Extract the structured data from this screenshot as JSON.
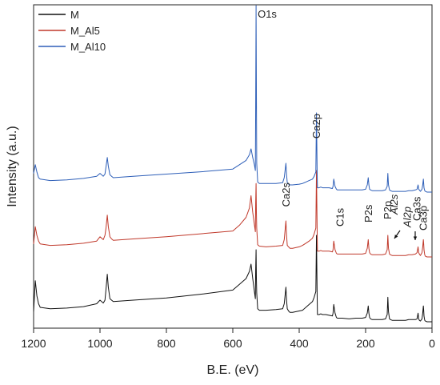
{
  "chart_data": {
    "type": "line",
    "xlabel": "B.E. (eV)",
    "ylabel": "Intensity (a.u.)",
    "xlim": [
      1200,
      0
    ],
    "x_reversed": true,
    "xticks": [
      1200,
      1000,
      800,
      600,
      400,
      200,
      0
    ],
    "y_ticks_shown": false,
    "grid": false,
    "legend_position": "top-left",
    "series": [
      {
        "name": "M",
        "color": "#111111",
        "offset": 0,
        "x": [
          1200,
          1195,
          1190,
          1185,
          1180,
          1150,
          1100,
          1050,
          1010,
          1000,
          990,
          985,
          982,
          978,
          975,
          970,
          965,
          960,
          900,
          800,
          700,
          600,
          580,
          560,
          550,
          545,
          540,
          535,
          532,
          531,
          530,
          529,
          528,
          525,
          520,
          500,
          470,
          450,
          445,
          440,
          438,
          436,
          432,
          428,
          420,
          400,
          390,
          380,
          370,
          360,
          355,
          350,
          348,
          347,
          346,
          345,
          343,
          340,
          335,
          330,
          320,
          310,
          300,
          298,
          296,
          292,
          288,
          285,
          280,
          270,
          250,
          230,
          210,
          200,
          195,
          192,
          190,
          188,
          185,
          180,
          170,
          160,
          150,
          140,
          135,
          133,
          131,
          128,
          125,
          120,
          110,
          100,
          90,
          80,
          70,
          60,
          50,
          45,
          42,
          40,
          38,
          35,
          30,
          28,
          26,
          25,
          24,
          22,
          20,
          15,
          10,
          5,
          0
        ],
        "y": [
          14,
          57,
          36,
          25,
          20,
          18,
          19,
          21,
          25,
          30,
          26,
          30,
          45,
          66,
          48,
          32,
          30,
          28,
          30,
          33,
          38,
          44,
          52,
          60,
          70,
          80,
          60,
          42,
          32,
          72,
          100,
          60,
          40,
          18,
          16,
          16,
          17,
          18,
          25,
          48,
          30,
          18,
          15,
          13,
          13,
          15,
          16,
          20,
          24,
          28,
          34,
          42,
          120,
          80,
          40,
          10,
          10,
          10,
          11,
          10,
          10,
          9,
          8,
          12,
          24,
          12,
          6,
          5,
          5,
          5,
          4,
          5,
          5,
          6,
          12,
          22,
          12,
          6,
          4,
          3,
          3,
          3,
          3,
          4,
          10,
          34,
          14,
          4,
          3,
          2,
          2,
          2,
          2,
          2,
          3,
          3,
          3,
          4,
          12,
          4,
          2,
          1,
          4,
          12,
          22,
          16,
          8,
          2,
          1,
          0,
          0,
          0,
          0
        ]
      },
      {
        "name": "M_Al5",
        "color": "#c0392b",
        "offset": 90,
        "x": [
          1200,
          1195,
          1190,
          1185,
          1180,
          1150,
          1100,
          1050,
          1010,
          1000,
          990,
          985,
          982,
          978,
          975,
          970,
          965,
          960,
          900,
          800,
          700,
          600,
          580,
          560,
          550,
          545,
          540,
          535,
          532,
          531,
          530,
          529,
          528,
          525,
          520,
          500,
          470,
          450,
          445,
          440,
          438,
          436,
          432,
          428,
          420,
          400,
          390,
          380,
          370,
          360,
          355,
          350,
          348,
          347,
          346,
          345,
          343,
          340,
          335,
          330,
          320,
          310,
          300,
          298,
          296,
          292,
          288,
          285,
          280,
          270,
          250,
          230,
          210,
          200,
          195,
          192,
          190,
          188,
          185,
          180,
          170,
          160,
          150,
          140,
          135,
          133,
          131,
          128,
          125,
          120,
          110,
          100,
          90,
          80,
          70,
          60,
          50,
          45,
          42,
          40,
          38,
          35,
          30,
          28,
          26,
          25,
          24,
          22,
          20,
          15,
          10,
          5,
          0
        ],
        "y": [
          18,
          42,
          30,
          22,
          18,
          16,
          17,
          19,
          22,
          28,
          24,
          30,
          40,
          58,
          42,
          28,
          25,
          23,
          25,
          28,
          32,
          36,
          44,
          55,
          68,
          85,
          62,
          45,
          35,
          75,
          102,
          62,
          40,
          17,
          15,
          14,
          15,
          16,
          24,
          50,
          30,
          16,
          14,
          12,
          12,
          14,
          16,
          19,
          22,
          26,
          32,
          40,
          120,
          80,
          40,
          8,
          8,
          8,
          9,
          8,
          8,
          8,
          7,
          10,
          22,
          10,
          5,
          4,
          4,
          4,
          4,
          4,
          4,
          5,
          12,
          24,
          12,
          6,
          4,
          3,
          3,
          3,
          3,
          4,
          10,
          30,
          12,
          4,
          3,
          2,
          2,
          2,
          2,
          2,
          3,
          3,
          4,
          6,
          14,
          6,
          4,
          2,
          6,
          14,
          24,
          18,
          10,
          3,
          1,
          0,
          0,
          0,
          0
        ]
      },
      {
        "name": "M_Al10",
        "color": "#2e5fb8",
        "offset": 180,
        "x": [
          1200,
          1195,
          1190,
          1185,
          1180,
          1150,
          1100,
          1050,
          1010,
          1000,
          990,
          985,
          982,
          978,
          975,
          970,
          965,
          960,
          900,
          800,
          700,
          600,
          580,
          560,
          550,
          545,
          540,
          535,
          532,
          531,
          530,
          529,
          528,
          525,
          520,
          500,
          470,
          450,
          445,
          440,
          438,
          436,
          432,
          428,
          420,
          400,
          390,
          380,
          370,
          360,
          355,
          350,
          348,
          347,
          346,
          345,
          343,
          340,
          335,
          330,
          320,
          310,
          300,
          298,
          296,
          292,
          288,
          285,
          280,
          270,
          250,
          230,
          210,
          200,
          195,
          192,
          190,
          188,
          185,
          180,
          170,
          160,
          150,
          140,
          135,
          133,
          131,
          128,
          125,
          120,
          110,
          100,
          90,
          80,
          70,
          60,
          50,
          45,
          42,
          40,
          38,
          35,
          30,
          28,
          26,
          25,
          24,
          22,
          20,
          15,
          10,
          5,
          0
        ],
        "y": [
          26,
          38,
          28,
          20,
          18,
          16,
          17,
          19,
          22,
          26,
          22,
          25,
          35,
          48,
          36,
          24,
          22,
          20,
          22,
          25,
          28,
          32,
          38,
          44,
          52,
          60,
          48,
          38,
          30,
          120,
          330,
          140,
          40,
          14,
          12,
          12,
          12,
          13,
          20,
          40,
          24,
          13,
          11,
          10,
          10,
          11,
          12,
          14,
          16,
          18,
          22,
          28,
          110,
          70,
          30,
          6,
          6,
          6,
          7,
          6,
          6,
          6,
          5,
          8,
          18,
          8,
          4,
          3,
          3,
          3,
          3,
          3,
          3,
          4,
          10,
          20,
          10,
          4,
          3,
          2,
          2,
          2,
          2,
          3,
          8,
          26,
          10,
          3,
          2,
          1,
          1,
          1,
          1,
          1,
          2,
          2,
          3,
          4,
          10,
          4,
          3,
          1,
          4,
          10,
          18,
          12,
          6,
          2,
          1,
          0,
          0,
          0,
          0
        ]
      }
    ],
    "annotations": [
      {
        "text": "O1s",
        "x": 530,
        "rotated": false,
        "color": "#222222"
      },
      {
        "text": "Ca2p",
        "x": 347,
        "rotated": true,
        "color": "#222222"
      },
      {
        "text": "Ca2s",
        "x": 438,
        "rotated": true,
        "color": "#222222"
      },
      {
        "text": "C1s",
        "x": 285,
        "rotated": true,
        "color": "#222222"
      },
      {
        "text": "P2s",
        "x": 190,
        "rotated": true,
        "color": "#222222"
      },
      {
        "text": "P2p",
        "x": 133,
        "rotated": true,
        "color": "#222222"
      },
      {
        "text": "Al2s",
        "x": 118,
        "rotated": true,
        "color": "#c0392b"
      },
      {
        "text": "Al2p",
        "x": 74,
        "rotated": true,
        "color": "#c0392b"
      },
      {
        "text": "Ca3s",
        "x": 44,
        "rotated": true,
        "color": "#222222"
      },
      {
        "text": "Ca3p",
        "x": 25,
        "rotated": true,
        "color": "#222222"
      }
    ]
  }
}
